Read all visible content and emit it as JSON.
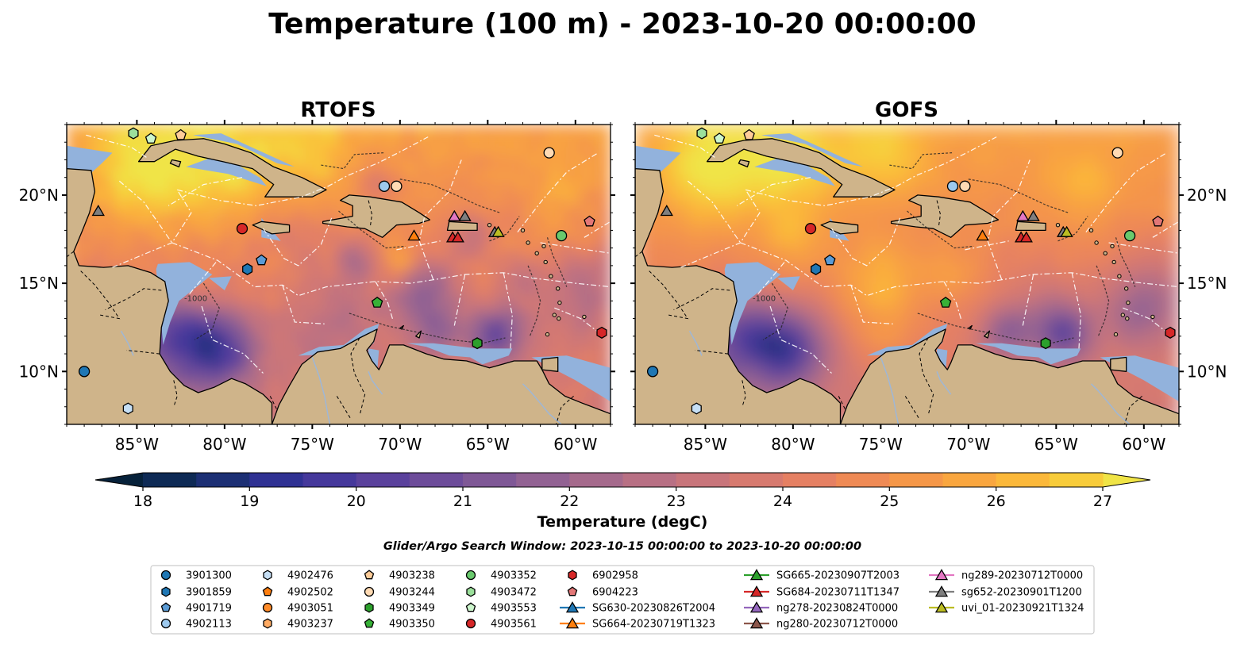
{
  "title": "Temperature (100 m) - 2023-10-20 00:00:00",
  "panels": [
    {
      "title": "RTOFS",
      "variant": "rtofs"
    },
    {
      "title": "GOFS",
      "variant": "gofs"
    }
  ],
  "map": {
    "lon_range": [
      -89.0,
      -58.0
    ],
    "lat_range": [
      7.0,
      24.0
    ],
    "lon_ticks": [
      -85,
      -80,
      -75,
      -70,
      -65,
      -60
    ],
    "lat_ticks": [
      10,
      15,
      20
    ],
    "lon_tick_labels": [
      "85°W",
      "80°W",
      "75°W",
      "70°W",
      "65°W",
      "60°W"
    ],
    "lat_tick_labels": [
      "10°N",
      "15°N",
      "20°N"
    ],
    "contour_label": "-1000"
  },
  "colorbar": {
    "label": "Temperature (degC)",
    "min": 17.5,
    "max": 27.5,
    "step": 0.5,
    "ticks": [
      "18",
      "19",
      "20",
      "21",
      "22",
      "23",
      "24",
      "25",
      "26",
      "27"
    ],
    "colors": [
      "#06213a",
      "#0e2a55",
      "#1c2f74",
      "#2f3193",
      "#45389b",
      "#5a419c",
      "#6d4c9a",
      "#7f5896",
      "#926293",
      "#a56a8c",
      "#b87084",
      "#c8757b",
      "#d77a6f",
      "#e58063",
      "#ef8a55",
      "#f59748",
      "#f9a63f",
      "#fbb83a",
      "#f8cc3a",
      "#f0e446"
    ]
  },
  "search_window": "Glider/Argo Search Window: 2023-10-15 00:00:00 to 2023-10-20 00:00:00",
  "land_color": "#cfb48a",
  "shelf_color": "#92b2dc",
  "legend": [
    {
      "label": "3901300",
      "marker": "circle",
      "color": "#1f77b4"
    },
    {
      "label": "3901859",
      "marker": "hexagon",
      "color": "#1f77b4"
    },
    {
      "label": "4901719",
      "marker": "pentagon",
      "color": "#5b9bd5"
    },
    {
      "label": "4902113",
      "marker": "circle",
      "color": "#9dc9ee"
    },
    {
      "label": "4902476",
      "marker": "hexagon",
      "color": "#c6dff5"
    },
    {
      "label": "4902502",
      "marker": "pentagon",
      "color": "#ff7f0e"
    },
    {
      "label": "4903051",
      "marker": "circle",
      "color": "#ff8c2a"
    },
    {
      "label": "4903237",
      "marker": "hexagon",
      "color": "#ffab63"
    },
    {
      "label": "4903238",
      "marker": "pentagon",
      "color": "#ffcc99"
    },
    {
      "label": "4903244",
      "marker": "circle",
      "color": "#ffdab3"
    },
    {
      "label": "4903349",
      "marker": "hexagon",
      "color": "#2ca02c"
    },
    {
      "label": "4903350",
      "marker": "pentagon",
      "color": "#37b137"
    },
    {
      "label": "4903352",
      "marker": "circle",
      "color": "#69c96d"
    },
    {
      "label": "4903472",
      "marker": "hexagon",
      "color": "#9be09b"
    },
    {
      "label": "4903553",
      "marker": "pentagon",
      "color": "#cdf6cd"
    },
    {
      "label": "4903561",
      "marker": "circle",
      "color": "#d62728"
    },
    {
      "label": "6902958",
      "marker": "hexagon",
      "color": "#d62728"
    },
    {
      "label": "6904223",
      "marker": "pentagon",
      "color": "#e37777"
    },
    {
      "label": "SG630-20230826T2004",
      "marker": "triangle-line",
      "color": "#1f77b4"
    },
    {
      "label": "SG664-20230719T1323",
      "marker": "triangle-line",
      "color": "#ff7f0e"
    },
    {
      "label": "SG665-20230907T2003",
      "marker": "triangle-line",
      "color": "#2ca02c"
    },
    {
      "label": "SG684-20230711T1347",
      "marker": "triangle-line",
      "color": "#d62728"
    },
    {
      "label": "ng278-20230824T0000",
      "marker": "triangle-line",
      "color": "#9467bd"
    },
    {
      "label": "ng280-20230712T0000",
      "marker": "triangle-line",
      "color": "#8c564b"
    },
    {
      "label": "ng289-20230712T0000",
      "marker": "triangle-line",
      "color": "#e377c2"
    },
    {
      "label": "sg652-20230901T1200",
      "marker": "triangle-line",
      "color": "#7f7f7f"
    },
    {
      "label": "uvi_01-20230921T1324",
      "marker": "triangle-line",
      "color": "#bcbd22"
    }
  ],
  "observations": [
    {
      "lon": -88.0,
      "lat": 10.0,
      "marker": "circle",
      "color": "#1f77b4"
    },
    {
      "lon": -78.7,
      "lat": 15.8,
      "marker": "hexagon",
      "color": "#1f77b4"
    },
    {
      "lon": -77.9,
      "lat": 16.3,
      "marker": "pentagon",
      "color": "#5b9bd5"
    },
    {
      "lon": -70.9,
      "lat": 20.5,
      "marker": "circle",
      "color": "#9dc9ee"
    },
    {
      "lon": -85.5,
      "lat": 7.9,
      "marker": "hexagon",
      "color": "#c6dff5"
    },
    {
      "lon": -82.5,
      "lat": 23.4,
      "marker": "pentagon",
      "color": "#ffcc99"
    },
    {
      "lon": -70.2,
      "lat": 20.5,
      "marker": "circle",
      "color": "#ffdab3"
    },
    {
      "lon": -61.5,
      "lat": 22.4,
      "marker": "circle",
      "color": "#ffdab3"
    },
    {
      "lon": -71.3,
      "lat": 13.9,
      "marker": "pentagon",
      "color": "#37b137"
    },
    {
      "lon": -65.6,
      "lat": 11.6,
      "marker": "hexagon",
      "color": "#2ca02c"
    },
    {
      "lon": -60.8,
      "lat": 17.7,
      "marker": "circle",
      "color": "#69c96d"
    },
    {
      "lon": -85.2,
      "lat": 23.5,
      "marker": "hexagon",
      "color": "#9be09b"
    },
    {
      "lon": -84.2,
      "lat": 23.2,
      "marker": "pentagon",
      "color": "#cdf6cd"
    },
    {
      "lon": -79.0,
      "lat": 18.1,
      "marker": "circle",
      "color": "#d62728"
    },
    {
      "lon": -58.5,
      "lat": 12.2,
      "marker": "hexagon",
      "color": "#d62728"
    },
    {
      "lon": -59.2,
      "lat": 18.5,
      "marker": "pentagon",
      "color": "#e37777"
    },
    {
      "lon": -87.2,
      "lat": 19.1,
      "marker": "triangle",
      "color": "#7f7f7f"
    },
    {
      "lon": -69.2,
      "lat": 17.7,
      "marker": "triangle",
      "color": "#ff7f0e"
    },
    {
      "lon": -67.0,
      "lat": 17.6,
      "marker": "triangle",
      "color": "#d62728"
    },
    {
      "lon": -66.7,
      "lat": 17.6,
      "marker": "triangle",
      "color": "#d62728"
    },
    {
      "lon": -66.9,
      "lat": 18.8,
      "marker": "triangle",
      "color": "#e377c2"
    },
    {
      "lon": -66.3,
      "lat": 18.8,
      "marker": "triangle",
      "color": "#7f7f7f"
    },
    {
      "lon": -64.6,
      "lat": 17.9,
      "marker": "triangle",
      "color": "#7f7f7f"
    },
    {
      "lon": -64.4,
      "lat": 17.9,
      "marker": "triangle",
      "color": "#bcbd22"
    }
  ]
}
